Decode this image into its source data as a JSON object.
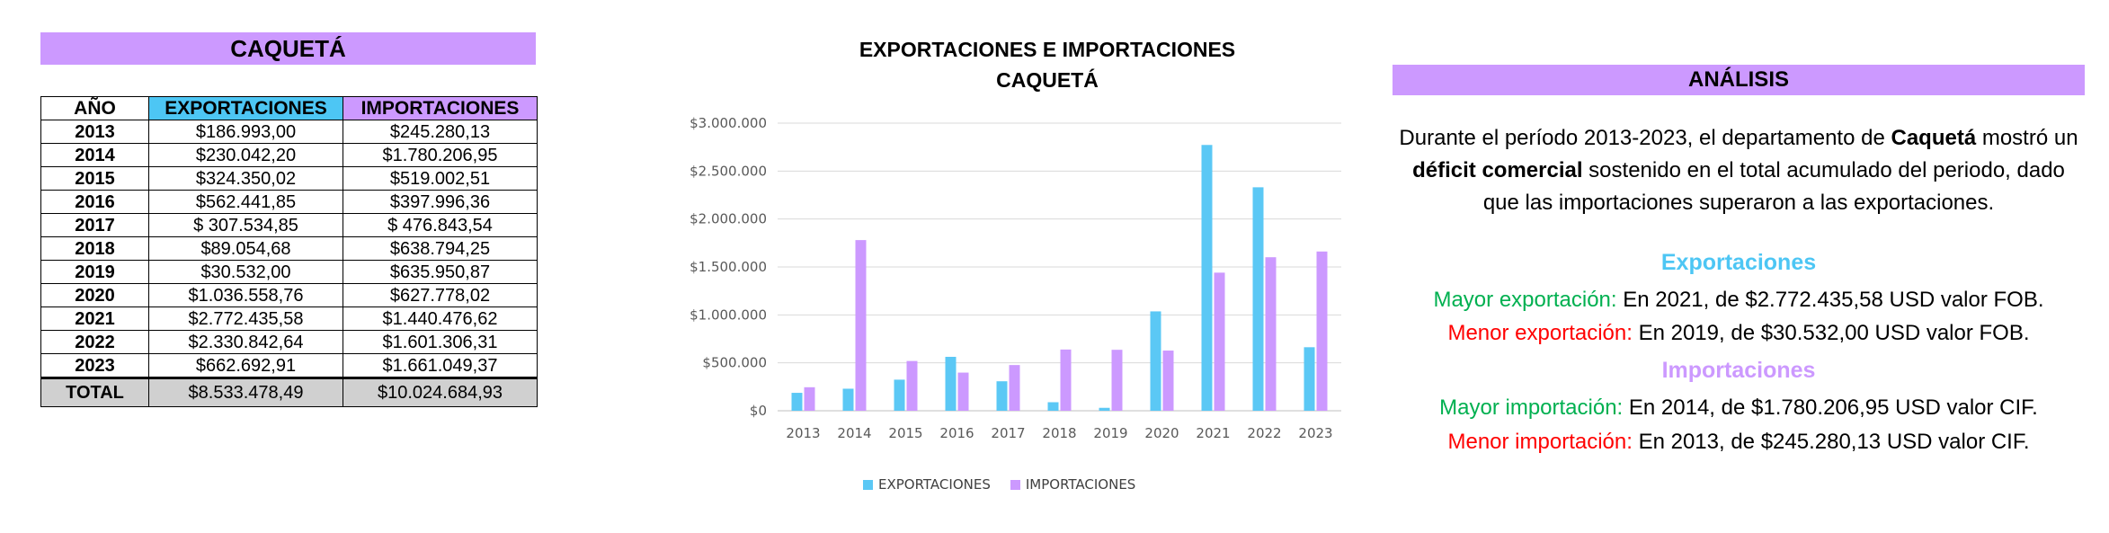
{
  "table": {
    "title": "CAQUETÁ",
    "headers": {
      "year": "AÑO",
      "exports": "EXPORTACIONES",
      "imports": "IMPORTACIONES"
    },
    "rows": [
      {
        "year": "2013",
        "exports": "$186.993,00",
        "imports": "$245.280,13"
      },
      {
        "year": "2014",
        "exports": "$230.042,20",
        "imports": "$1.780.206,95"
      },
      {
        "year": "2015",
        "exports": "$324.350,02",
        "imports": "$519.002,51"
      },
      {
        "year": "2016",
        "exports": "$562.441,85",
        "imports": "$397.996,36"
      },
      {
        "year": "2017",
        "exports": "$ 307.534,85",
        "imports": "$ 476.843,54"
      },
      {
        "year": "2018",
        "exports": "$89.054,68",
        "imports": "$638.794,25"
      },
      {
        "year": "2019",
        "exports": "$30.532,00",
        "imports": "$635.950,87"
      },
      {
        "year": "2020",
        "exports": "$1.036.558,76",
        "imports": "$627.778,02"
      },
      {
        "year": "2021",
        "exports": "$2.772.435,58",
        "imports": "$1.440.476,62"
      },
      {
        "year": "2022",
        "exports": "$2.330.842,64",
        "imports": "$1.601.306,31"
      },
      {
        "year": "2023",
        "exports": "$662.692,91",
        "imports": "$1.661.049,37"
      }
    ],
    "total": {
      "label": "TOTAL",
      "exports": "$8.533.478,49",
      "imports": "$10.024.684,93"
    },
    "colors": {
      "title_bg": "#cc99ff",
      "exports_header_bg": "#4dc6f4",
      "imports_header_bg": "#cc99ff",
      "total_bg": "#d0d0d0"
    }
  },
  "chart_data": {
    "type": "bar",
    "title_line1": "EXPORTACIONES E IMPORTACIONES",
    "title_line2": "CAQUETÁ",
    "categories": [
      "2013",
      "2014",
      "2015",
      "2016",
      "2017",
      "2018",
      "2019",
      "2020",
      "2021",
      "2022",
      "2023"
    ],
    "series": [
      {
        "name": "EXPORTACIONES",
        "color": "#5bc8f5",
        "values": [
          186993.0,
          230042.2,
          324350.02,
          562441.85,
          307534.85,
          89054.68,
          30532.0,
          1036558.76,
          2772435.58,
          2330842.64,
          662692.91
        ]
      },
      {
        "name": "IMPORTACIONES",
        "color": "#cc99ff",
        "values": [
          245280.13,
          1780206.95,
          519002.51,
          397996.36,
          476843.54,
          638794.25,
          635950.87,
          627778.02,
          1440476.62,
          1601306.31,
          1661049.37
        ]
      }
    ],
    "yticks": [
      0,
      500000,
      1000000,
      1500000,
      2000000,
      2500000,
      3000000
    ],
    "ytick_labels": [
      "$0",
      "$500.000",
      "$1.000.000",
      "$1.500.000",
      "$2.000.000",
      "$2.500.000",
      "$3.000.000"
    ],
    "ylim": [
      0,
      3000000
    ],
    "grid": true,
    "legend_position": "bottom"
  },
  "analysis": {
    "title": "ANÁLISIS",
    "p1_a": "Durante el período 2013-2023, el departamento de ",
    "p1_b": "Caquetá",
    "p1_c": " mostró un ",
    "p1_d": "déficit comercial",
    "p1_e": " sostenido en el total acumulado del periodo, dado que las importaciones superaron a las exportaciones.",
    "exports_heading": "Exportaciones",
    "max_export_label": "Mayor exportación:",
    "max_export_text": " En 2021, de $2.772.435,58 USD valor FOB.",
    "min_export_label": "Menor exportación:",
    "min_export_text": " En 2019, de $30.532,00 USD valor FOB.",
    "imports_heading": "Importaciones",
    "max_import_label": "Mayor importación:",
    "max_import_text": " En 2014, de $1.780.206,95 USD valor CIF.",
    "min_import_label": "Menor importación:",
    "min_import_text": " En 2013, de $245.280,13 USD valor CIF.",
    "colors": {
      "exports_heading": "#4dc6f4",
      "imports_heading": "#cc99ff",
      "max": "#00b050",
      "min": "#ff0000"
    }
  }
}
